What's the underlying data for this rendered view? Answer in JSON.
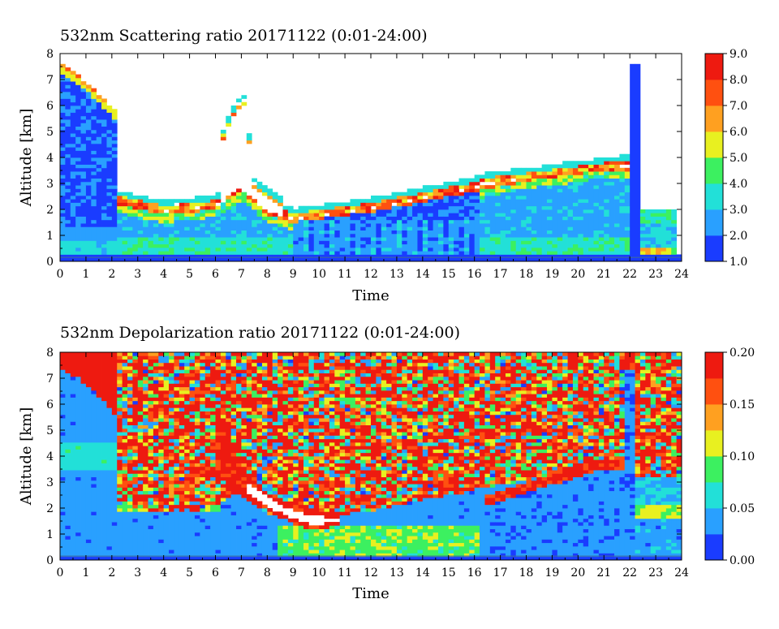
{
  "chart_data": [
    {
      "type": "heatmap",
      "title": "532nm Scattering ratio  20171122 (0:01-24:00)",
      "xlabel": "Time",
      "ylabel": "Altitude [km]",
      "xlim": [
        0,
        24
      ],
      "ylim": [
        0,
        8
      ],
      "x_ticks": [
        "0",
        "1",
        "2",
        "3",
        "4",
        "5",
        "6",
        "7",
        "8",
        "9",
        "10",
        "11",
        "12",
        "13",
        "14",
        "15",
        "16",
        "17",
        "18",
        "19",
        "20",
        "21",
        "22",
        "23",
        "24"
      ],
      "y_ticks": [
        "0",
        "1",
        "2",
        "3",
        "4",
        "5",
        "6",
        "7",
        "8"
      ],
      "colorbar": {
        "range": [
          1.0,
          9.0
        ],
        "ticks": [
          "1.0",
          "2.0",
          "3.0",
          "4.0",
          "5.0",
          "6.0",
          "7.0",
          "8.0",
          "9.0"
        ],
        "colors": [
          "#1a3cff",
          "#29a0ff",
          "#22e0d8",
          "#3cf060",
          "#e8f020",
          "#ffa020",
          "#ff5010",
          "#ee1a10"
        ],
        "over_color": "#ffffff"
      },
      "cloud_base_km": [
        {
          "t": 2.2,
          "base": 2.2
        },
        {
          "t": 4.0,
          "base": 1.8
        },
        {
          "t": 6.0,
          "base": 2.0
        },
        {
          "t": 7.0,
          "base": 2.7
        },
        {
          "t": 8.0,
          "base": 1.8
        },
        {
          "t": 9.0,
          "base": 1.5
        },
        {
          "t": 12.0,
          "base": 1.9
        },
        {
          "t": 16.0,
          "base": 2.7
        },
        {
          "t": 18.0,
          "base": 3.1
        },
        {
          "t": 21.0,
          "base": 3.5
        }
      ]
    },
    {
      "type": "heatmap",
      "title": "532nm Depolarization ratio  20171122 (0:01-24:00)",
      "xlabel": "Time",
      "ylabel": "Altitude [km]",
      "xlim": [
        0,
        24
      ],
      "ylim": [
        0,
        8
      ],
      "x_ticks": [
        "0",
        "1",
        "2",
        "3",
        "4",
        "5",
        "6",
        "7",
        "8",
        "9",
        "10",
        "11",
        "12",
        "13",
        "14",
        "15",
        "16",
        "17",
        "18",
        "19",
        "20",
        "21",
        "22",
        "23",
        "24"
      ],
      "y_ticks": [
        "0",
        "1",
        "2",
        "3",
        "4",
        "5",
        "6",
        "7",
        "8"
      ],
      "colorbar": {
        "range": [
          0.0,
          0.2
        ],
        "ticks": [
          "0.00",
          "0.05",
          "0.10",
          "0.15",
          "0.20"
        ],
        "colors": [
          "#1a3cff",
          "#29a0ff",
          "#22e0d8",
          "#3cf060",
          "#e8f020",
          "#ffa020",
          "#ff5010",
          "#ee1a10"
        ],
        "over_color": "#ffffff"
      }
    }
  ]
}
